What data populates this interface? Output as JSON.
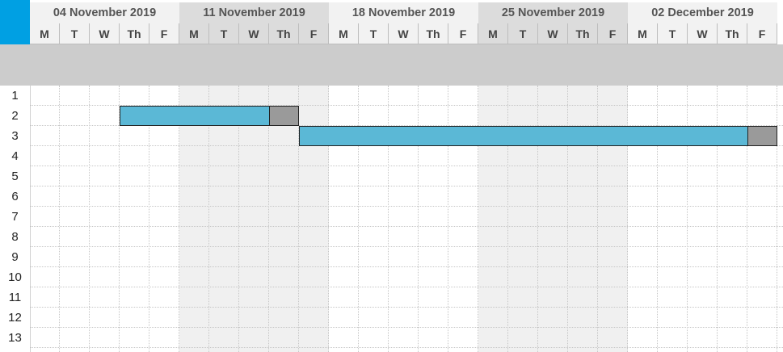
{
  "timeline": {
    "weeks": [
      {
        "label": "04 November 2019"
      },
      {
        "label": "11 November 2019"
      },
      {
        "label": "18 November 2019"
      },
      {
        "label": "25 November 2019"
      },
      {
        "label": "02 December 2019"
      }
    ],
    "day_labels": [
      "M",
      "T",
      "W",
      "Th",
      "F"
    ]
  },
  "rows": [
    "1",
    "2",
    "3",
    "4",
    "5",
    "6",
    "7",
    "8",
    "9",
    "10",
    "11",
    "12",
    "13"
  ],
  "colors": {
    "corner": "#00a0e3",
    "bar": "#5bb8d6",
    "bar_tail": "#9a9a9a",
    "alt_week_header": "#dcdcdc",
    "week_header": "#f2f2f2",
    "alt_week_shade": "#f0f0f0",
    "header_band": "#cccccc"
  },
  "tasks": [
    {
      "row": "2",
      "start_day": 3,
      "main_days": 5,
      "tail_days": 1
    },
    {
      "row": "3",
      "start_day": 9,
      "main_days": 15,
      "tail_days": 1
    }
  ]
}
